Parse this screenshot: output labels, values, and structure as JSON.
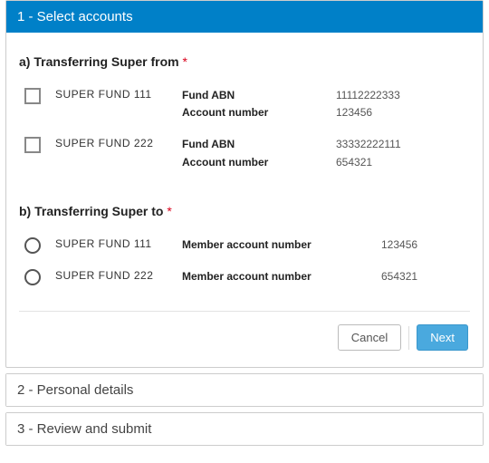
{
  "colors": {
    "header_bg": "#0080c8",
    "header_text": "#ffffff",
    "border": "#cccccc",
    "required": "#d9001b",
    "btn_next_bg": "#4aa9de",
    "btn_next_text": "#ffffff",
    "btn_cancel_bg": "#ffffff",
    "btn_cancel_text": "#555555"
  },
  "steps": {
    "s1": "1 - Select accounts",
    "s2": "2 - Personal details",
    "s3": "3 - Review and submit"
  },
  "from": {
    "title": "a) Transferring Super from",
    "required_mark": "*",
    "label_abn": "Fund ABN",
    "label_acct": "Account number",
    "items": [
      {
        "name": "SUPER FUND 111",
        "abn": "11112222333",
        "acct": "123456"
      },
      {
        "name": "SUPER FUND 222",
        "abn": "33332222111",
        "acct": "654321"
      }
    ]
  },
  "to": {
    "title": "b) Transferring Super to",
    "required_mark": "*",
    "label_member_acct": "Member account number",
    "items": [
      {
        "name": "SUPER FUND 111",
        "acct": "123456"
      },
      {
        "name": "SUPER FUND 222",
        "acct": "654321"
      }
    ]
  },
  "actions": {
    "cancel": "Cancel",
    "next": "Next"
  }
}
